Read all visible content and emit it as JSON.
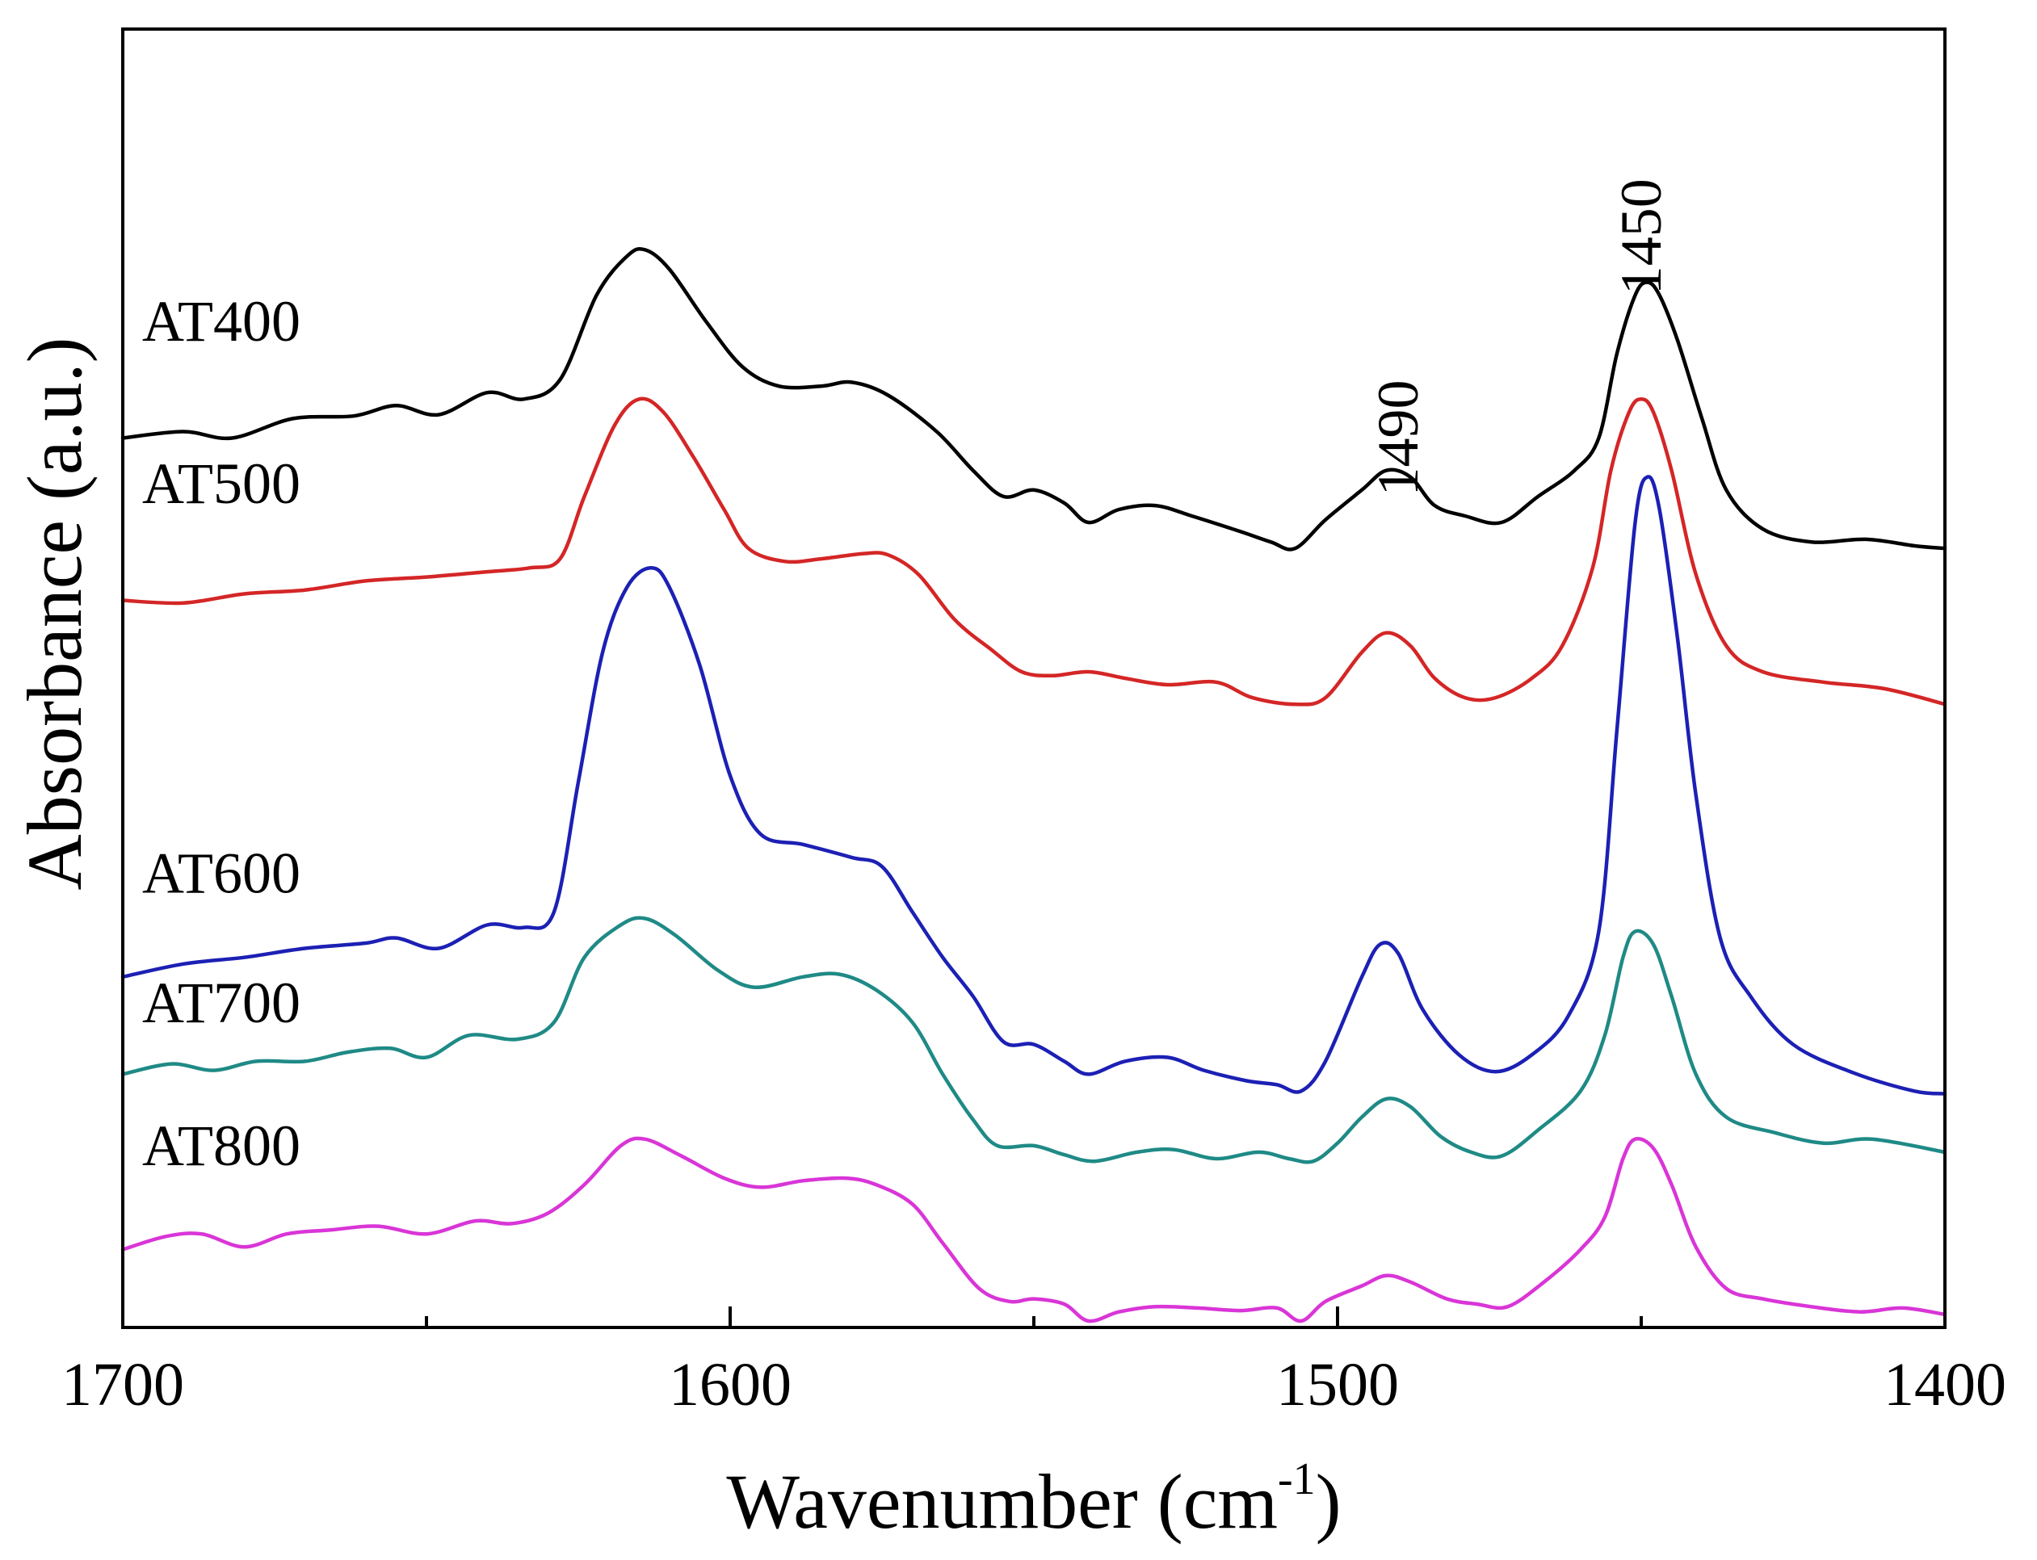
{
  "chart_data": {
    "type": "line",
    "title": "",
    "xlabel": "Wavenumber (cm",
    "xlabel_sup": "-1",
    "xlabel_close": ")",
    "ylabel": "Absorbance (a.u.)",
    "xlim": [
      1700,
      1400
    ],
    "ylim": [
      0,
      10
    ],
    "x_ticks": [
      1700,
      1600,
      1500,
      1400
    ],
    "x_tick_labels": [
      "1700",
      "1600",
      "1500",
      "1400"
    ],
    "y_ticks_shown": false,
    "grid": false,
    "annotations": [
      {
        "text": "1490",
        "x": 1490,
        "y": 6.85
      },
      {
        "text": "1450",
        "x": 1450,
        "y": 8.4
      }
    ],
    "series": [
      {
        "name": "AT400",
        "color": "#000000",
        "label_y": 7.6,
        "points": [
          [
            1700,
            6.85
          ],
          [
            1690,
            6.9
          ],
          [
            1682,
            6.85
          ],
          [
            1672,
            7.0
          ],
          [
            1662,
            7.02
          ],
          [
            1655,
            7.1
          ],
          [
            1648,
            7.03
          ],
          [
            1640,
            7.2
          ],
          [
            1634,
            7.15
          ],
          [
            1628,
            7.3
          ],
          [
            1622,
            7.95
          ],
          [
            1617,
            8.25
          ],
          [
            1614,
            8.3
          ],
          [
            1610,
            8.15
          ],
          [
            1604,
            7.75
          ],
          [
            1598,
            7.4
          ],
          [
            1592,
            7.25
          ],
          [
            1585,
            7.25
          ],
          [
            1580,
            7.28
          ],
          [
            1574,
            7.18
          ],
          [
            1566,
            6.9
          ],
          [
            1560,
            6.6
          ],
          [
            1555,
            6.4
          ],
          [
            1550,
            6.45
          ],
          [
            1545,
            6.35
          ],
          [
            1541,
            6.2
          ],
          [
            1536,
            6.3
          ],
          [
            1530,
            6.33
          ],
          [
            1524,
            6.25
          ],
          [
            1516,
            6.13
          ],
          [
            1511,
            6.05
          ],
          [
            1507,
            6.0
          ],
          [
            1502,
            6.22
          ],
          [
            1496,
            6.45
          ],
          [
            1492,
            6.6
          ],
          [
            1488,
            6.55
          ],
          [
            1484,
            6.33
          ],
          [
            1479,
            6.25
          ],
          [
            1473,
            6.2
          ],
          [
            1467,
            6.4
          ],
          [
            1461,
            6.6
          ],
          [
            1457,
            6.85
          ],
          [
            1454,
            7.5
          ],
          [
            1451,
            7.95
          ],
          [
            1449,
            8.05
          ],
          [
            1447,
            7.95
          ],
          [
            1444,
            7.6
          ],
          [
            1440,
            7.0
          ],
          [
            1436,
            6.45
          ],
          [
            1430,
            6.15
          ],
          [
            1422,
            6.05
          ],
          [
            1413,
            6.07
          ],
          [
            1405,
            6.02
          ],
          [
            1400,
            6.0
          ]
        ]
      },
      {
        "name": "AT500",
        "color": "#d42626",
        "label_y": 6.35,
        "points": [
          [
            1700,
            5.6
          ],
          [
            1690,
            5.58
          ],
          [
            1680,
            5.65
          ],
          [
            1670,
            5.68
          ],
          [
            1660,
            5.75
          ],
          [
            1650,
            5.78
          ],
          [
            1640,
            5.82
          ],
          [
            1633,
            5.85
          ],
          [
            1628,
            5.92
          ],
          [
            1624,
            6.4
          ],
          [
            1619,
            6.95
          ],
          [
            1615,
            7.15
          ],
          [
            1611,
            7.05
          ],
          [
            1606,
            6.7
          ],
          [
            1601,
            6.3
          ],
          [
            1597,
            6.0
          ],
          [
            1591,
            5.9
          ],
          [
            1585,
            5.92
          ],
          [
            1578,
            5.96
          ],
          [
            1574,
            5.95
          ],
          [
            1569,
            5.8
          ],
          [
            1563,
            5.45
          ],
          [
            1557,
            5.22
          ],
          [
            1552,
            5.05
          ],
          [
            1547,
            5.02
          ],
          [
            1541,
            5.05
          ],
          [
            1535,
            5.0
          ],
          [
            1528,
            4.95
          ],
          [
            1520,
            4.97
          ],
          [
            1514,
            4.85
          ],
          [
            1507,
            4.8
          ],
          [
            1502,
            4.85
          ],
          [
            1496,
            5.2
          ],
          [
            1492,
            5.35
          ],
          [
            1488,
            5.25
          ],
          [
            1484,
            5.0
          ],
          [
            1479,
            4.85
          ],
          [
            1474,
            4.85
          ],
          [
            1468,
            5.0
          ],
          [
            1463,
            5.25
          ],
          [
            1458,
            5.85
          ],
          [
            1455,
            6.6
          ],
          [
            1452,
            7.05
          ],
          [
            1450,
            7.15
          ],
          [
            1448,
            7.05
          ],
          [
            1445,
            6.6
          ],
          [
            1441,
            5.8
          ],
          [
            1436,
            5.25
          ],
          [
            1430,
            5.05
          ],
          [
            1420,
            4.97
          ],
          [
            1410,
            4.92
          ],
          [
            1400,
            4.8
          ]
        ]
      },
      {
        "name": "AT600",
        "color": "#1c20b4",
        "label_y": 3.35,
        "points": [
          [
            1700,
            2.7
          ],
          [
            1690,
            2.8
          ],
          [
            1680,
            2.85
          ],
          [
            1670,
            2.92
          ],
          [
            1660,
            2.96
          ],
          [
            1655,
            3.0
          ],
          [
            1648,
            2.92
          ],
          [
            1640,
            3.1
          ],
          [
            1634,
            3.08
          ],
          [
            1629,
            3.2
          ],
          [
            1625,
            4.2
          ],
          [
            1621,
            5.2
          ],
          [
            1617,
            5.7
          ],
          [
            1613,
            5.85
          ],
          [
            1610,
            5.7
          ],
          [
            1605,
            5.1
          ],
          [
            1600,
            4.25
          ],
          [
            1595,
            3.8
          ],
          [
            1588,
            3.72
          ],
          [
            1580,
            3.62
          ],
          [
            1575,
            3.55
          ],
          [
            1570,
            3.2
          ],
          [
            1565,
            2.85
          ],
          [
            1560,
            2.55
          ],
          [
            1555,
            2.2
          ],
          [
            1550,
            2.18
          ],
          [
            1545,
            2.05
          ],
          [
            1541,
            1.95
          ],
          [
            1535,
            2.05
          ],
          [
            1528,
            2.08
          ],
          [
            1522,
            1.98
          ],
          [
            1515,
            1.9
          ],
          [
            1510,
            1.87
          ],
          [
            1506,
            1.82
          ],
          [
            1502,
            2.05
          ],
          [
            1496,
            2.7
          ],
          [
            1493,
            2.95
          ],
          [
            1490,
            2.88
          ],
          [
            1486,
            2.45
          ],
          [
            1480,
            2.1
          ],
          [
            1474,
            1.97
          ],
          [
            1468,
            2.1
          ],
          [
            1462,
            2.4
          ],
          [
            1457,
            3.05
          ],
          [
            1454,
            4.6
          ],
          [
            1451,
            6.2
          ],
          [
            1449,
            6.55
          ],
          [
            1447,
            6.3
          ],
          [
            1444,
            5.3
          ],
          [
            1441,
            4.1
          ],
          [
            1437,
            3.0
          ],
          [
            1432,
            2.55
          ],
          [
            1425,
            2.18
          ],
          [
            1415,
            1.96
          ],
          [
            1405,
            1.82
          ],
          [
            1400,
            1.8
          ]
        ]
      },
      {
        "name": "AT700",
        "color": "#1f8a86",
        "label_y": 2.35,
        "points": [
          [
            1700,
            1.95
          ],
          [
            1692,
            2.03
          ],
          [
            1685,
            1.98
          ],
          [
            1678,
            2.05
          ],
          [
            1670,
            2.05
          ],
          [
            1663,
            2.12
          ],
          [
            1656,
            2.15
          ],
          [
            1650,
            2.08
          ],
          [
            1643,
            2.25
          ],
          [
            1635,
            2.22
          ],
          [
            1629,
            2.35
          ],
          [
            1624,
            2.85
          ],
          [
            1618,
            3.1
          ],
          [
            1614,
            3.15
          ],
          [
            1609,
            3.02
          ],
          [
            1602,
            2.75
          ],
          [
            1596,
            2.62
          ],
          [
            1588,
            2.7
          ],
          [
            1582,
            2.72
          ],
          [
            1576,
            2.6
          ],
          [
            1570,
            2.35
          ],
          [
            1565,
            1.95
          ],
          [
            1560,
            1.6
          ],
          [
            1556,
            1.4
          ],
          [
            1550,
            1.4
          ],
          [
            1545,
            1.33
          ],
          [
            1540,
            1.28
          ],
          [
            1533,
            1.35
          ],
          [
            1527,
            1.37
          ],
          [
            1520,
            1.3
          ],
          [
            1513,
            1.35
          ],
          [
            1508,
            1.3
          ],
          [
            1504,
            1.28
          ],
          [
            1500,
            1.42
          ],
          [
            1496,
            1.62
          ],
          [
            1492,
            1.76
          ],
          [
            1488,
            1.7
          ],
          [
            1483,
            1.47
          ],
          [
            1478,
            1.35
          ],
          [
            1473,
            1.32
          ],
          [
            1467,
            1.52
          ],
          [
            1460,
            1.82
          ],
          [
            1456,
            2.25
          ],
          [
            1453,
            2.85
          ],
          [
            1451,
            3.05
          ],
          [
            1448,
            2.95
          ],
          [
            1445,
            2.55
          ],
          [
            1441,
            1.95
          ],
          [
            1436,
            1.62
          ],
          [
            1428,
            1.5
          ],
          [
            1420,
            1.42
          ],
          [
            1412,
            1.45
          ],
          [
            1400,
            1.35
          ]
        ]
      },
      {
        "name": "AT800",
        "color": "#d935d7",
        "label_y": 1.25,
        "points": [
          [
            1700,
            0.6
          ],
          [
            1693,
            0.7
          ],
          [
            1687,
            0.72
          ],
          [
            1680,
            0.62
          ],
          [
            1673,
            0.72
          ],
          [
            1666,
            0.75
          ],
          [
            1658,
            0.78
          ],
          [
            1650,
            0.72
          ],
          [
            1642,
            0.82
          ],
          [
            1636,
            0.8
          ],
          [
            1630,
            0.88
          ],
          [
            1624,
            1.1
          ],
          [
            1618,
            1.4
          ],
          [
            1614,
            1.45
          ],
          [
            1608,
            1.32
          ],
          [
            1601,
            1.15
          ],
          [
            1595,
            1.08
          ],
          [
            1588,
            1.13
          ],
          [
            1581,
            1.15
          ],
          [
            1576,
            1.1
          ],
          [
            1570,
            0.95
          ],
          [
            1565,
            0.65
          ],
          [
            1559,
            0.3
          ],
          [
            1554,
            0.2
          ],
          [
            1550,
            0.22
          ],
          [
            1545,
            0.18
          ],
          [
            1541,
            0.05
          ],
          [
            1536,
            0.12
          ],
          [
            1530,
            0.16
          ],
          [
            1523,
            0.15
          ],
          [
            1516,
            0.13
          ],
          [
            1510,
            0.15
          ],
          [
            1506,
            0.05
          ],
          [
            1502,
            0.2
          ],
          [
            1496,
            0.32
          ],
          [
            1492,
            0.4
          ],
          [
            1488,
            0.35
          ],
          [
            1482,
            0.22
          ],
          [
            1477,
            0.18
          ],
          [
            1472,
            0.16
          ],
          [
            1466,
            0.35
          ],
          [
            1460,
            0.6
          ],
          [
            1456,
            0.85
          ],
          [
            1453,
            1.3
          ],
          [
            1451,
            1.45
          ],
          [
            1448,
            1.38
          ],
          [
            1445,
            1.1
          ],
          [
            1441,
            0.62
          ],
          [
            1436,
            0.3
          ],
          [
            1430,
            0.22
          ],
          [
            1422,
            0.16
          ],
          [
            1414,
            0.12
          ],
          [
            1407,
            0.15
          ],
          [
            1400,
            0.1
          ]
        ]
      }
    ]
  }
}
